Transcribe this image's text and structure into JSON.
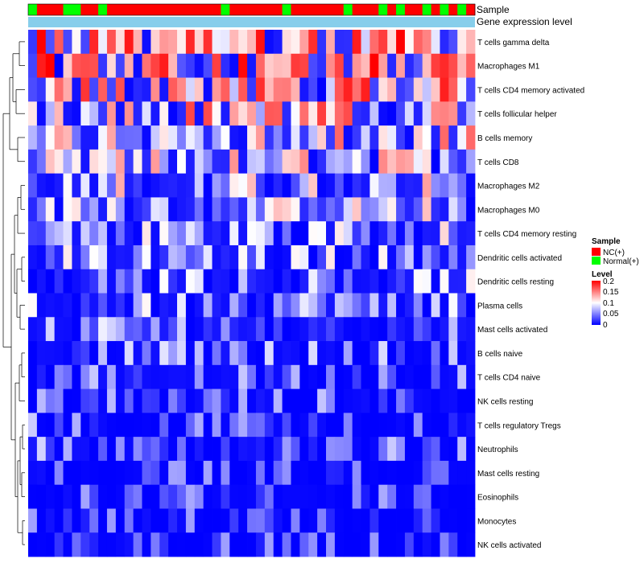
{
  "chart_data": {
    "type": "heatmap",
    "title": "",
    "annotation_tracks": [
      "Sample",
      "Gene expression level"
    ],
    "sample_groups": [
      "N",
      "C",
      "C",
      "C",
      "N",
      "N",
      "C",
      "C",
      "N",
      "C",
      "C",
      "C",
      "C",
      "C",
      "C",
      "C",
      "C",
      "C",
      "C",
      "C",
      "C",
      "C",
      "N",
      "C",
      "C",
      "C",
      "C",
      "C",
      "C",
      "N",
      "C",
      "C",
      "C",
      "C",
      "C",
      "C",
      "N",
      "C",
      "C",
      "C",
      "N",
      "C",
      "N",
      "C",
      "C",
      "N",
      "C",
      "N",
      "C",
      "N",
      "C"
    ],
    "group_colors": {
      "C": "#ff0000",
      "N": "#00ff00"
    },
    "expression_color": "#87ceeb",
    "rows": [
      "T cells gamma delta",
      "Macrophages M1",
      "T cells CD4 memory activated",
      "T cells follicular helper",
      "B cells memory",
      "T cells CD8",
      "Macrophages M2",
      "Macrophages M0",
      "T cells CD4 memory resting",
      "Dendritic cells activated",
      "Dendritic cells resting",
      "Plasma cells",
      "Mast cells activated",
      "B cells naive",
      "T cells CD4 naive",
      "NK cells resting",
      "T cells regulatory  Tregs",
      "Neutrophils",
      "Mast cells resting",
      "Eosinophils",
      "Monocytes",
      "NK cells activated"
    ],
    "row_base_level": [
      0.14,
      0.15,
      0.13,
      0.12,
      0.1,
      0.09,
      0.08,
      0.07,
      0.06,
      0.055,
      0.05,
      0.045,
      0.045,
      0.03,
      0.025,
      0.02,
      0.02,
      0.025,
      0.01,
      0.01,
      0.005,
      0.005
    ],
    "legend": {
      "sample_title": "Sample",
      "sample_entries": [
        {
          "label": "NC(+)",
          "color": "#ff0000"
        },
        {
          "label": "Normal(+)",
          "color": "#00ff00"
        }
      ],
      "level_title": "Level",
      "level_ticks": [
        "0.2",
        "0.15",
        "0.1",
        "0.05",
        "0"
      ],
      "level_range": [
        0,
        0.2
      ]
    },
    "scale_colors": {
      "low": "#0000ff",
      "mid": "#ffffff",
      "high": "#ff0000"
    }
  }
}
